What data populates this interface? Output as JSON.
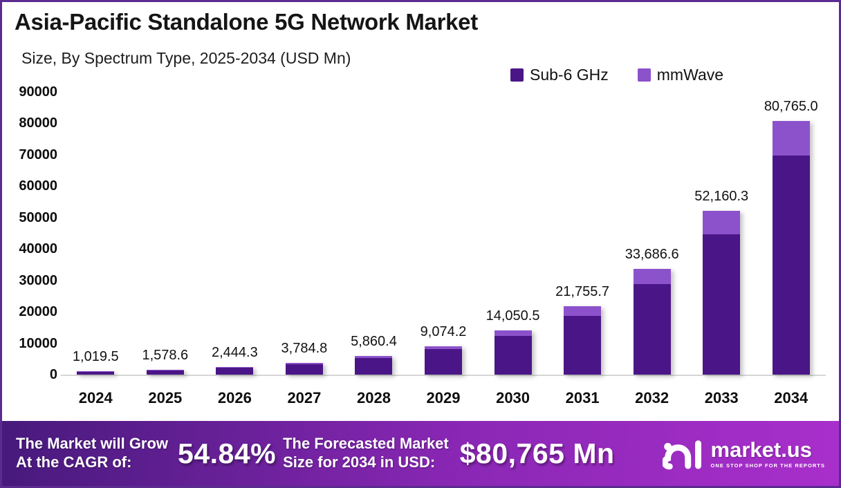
{
  "header": {
    "title": "Asia-Pacific Standalone 5G Network Market",
    "subtitle": "Size, By Spectrum Type, 2025-2034 (USD Mn)"
  },
  "legend": [
    {
      "label": "Sub-6 GHz",
      "color": "#4a1687"
    },
    {
      "label": "mmWave",
      "color": "#8c52cb"
    }
  ],
  "chart_data": {
    "type": "bar",
    "subtype": "stacked",
    "title": "Asia-Pacific Standalone 5G Network Market",
    "subtitle": "Size, By Spectrum Type, 2025-2034 (USD Mn)",
    "categories": [
      "2024",
      "2025",
      "2026",
      "2027",
      "2028",
      "2029",
      "2030",
      "2031",
      "2032",
      "2033",
      "2034"
    ],
    "totals": [
      1019.5,
      1578.6,
      2444.3,
      3784.8,
      5860.4,
      9074.2,
      14050.5,
      21755.7,
      33686.6,
      52160.3,
      80765.0
    ],
    "totals_labels": [
      "1,019.5",
      "1,578.6",
      "2,444.3",
      "3,784.8",
      "5,860.4",
      "9,074.2",
      "14,050.5",
      "21,755.7",
      "33,686.6",
      "52,160.3",
      "80,765.0"
    ],
    "series": [
      {
        "name": "Sub-6 GHz",
        "color": "#4a1687",
        "values": [
          930.0,
          1430.0,
          2210.0,
          3410.0,
          5270.0,
          8210.0,
          12310.0,
          18700.0,
          28900.0,
          44760.0,
          69765.0
        ]
      },
      {
        "name": "mmWave",
        "color": "#8c52cb",
        "values": [
          89.5,
          148.6,
          234.3,
          374.8,
          590.4,
          864.2,
          1740.5,
          3055.7,
          4786.6,
          7400.3,
          11000.0
        ]
      }
    ],
    "ylim": [
      0,
      90000
    ],
    "y_ticks": [
      "90000",
      "80000",
      "70000",
      "60000",
      "50000",
      "40000",
      "30000",
      "20000",
      "10000",
      "0"
    ],
    "xlabel": "",
    "ylabel": "",
    "grid": false,
    "legend_position": "top-right"
  },
  "banner": {
    "cagr_label_line1": "The Market will Grow",
    "cagr_label_line2": "At the CAGR of:",
    "cagr_value": "54.84%",
    "forecast_label_line1": "The Forecasted Market",
    "forecast_label_line2": "Size for 2034 in USD:",
    "forecast_value": "$80,765 Mn",
    "brand": "market.us",
    "tagline": "ONE STOP SHOP FOR THE REPORTS"
  },
  "colors": {
    "sub6": "#4a1687",
    "mmwave": "#8c52cb",
    "page_border": "#5c2b90",
    "axis_line": "#d6d6d6",
    "banner_gradient_start": "#471a7c",
    "banner_gradient_mid": "#8a27b5",
    "banner_gradient_end": "#a92fcb"
  }
}
